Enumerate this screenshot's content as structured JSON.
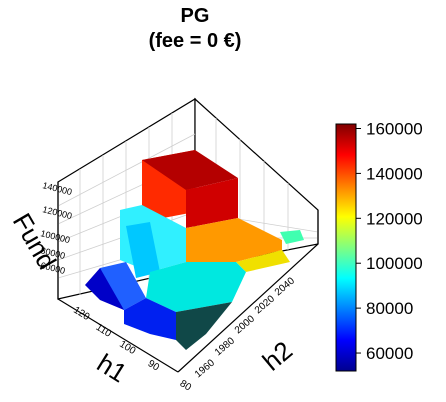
{
  "chart_data": {
    "type": "3d-bar-surface",
    "title": "PG",
    "subtitle": "(fee =  0 €)",
    "xlabel": "h1",
    "ylabel": "h2",
    "zlabel": "Fund",
    "x_ticks": [
      "80",
      "90",
      "100",
      "110",
      "120"
    ],
    "y_ticks": [
      "1960",
      "1980",
      "2000",
      "2020",
      "2040"
    ],
    "z_ticks": [
      "60000",
      "80000",
      "100000",
      "120000",
      "140000"
    ],
    "colorbar_ticks": [
      "60000",
      "80000",
      "100000",
      "120000",
      "140000",
      "160000"
    ],
    "colorbar_range": [
      52000,
      162000
    ],
    "colors": [
      "#00008f",
      "#0000ff",
      "#0080ff",
      "#00ffff",
      "#80ff80",
      "#ffff00",
      "#ff8000",
      "#ff0000",
      "#800000"
    ]
  }
}
